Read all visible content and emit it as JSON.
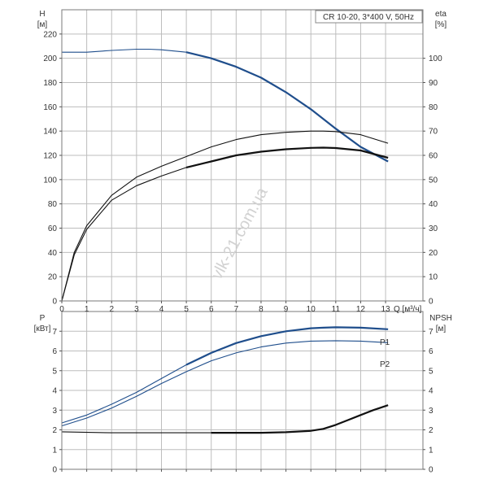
{
  "header_box": "CR 10-20, 3*400 V, 50Hz",
  "watermark": "vlk-21.com.ua",
  "colors": {
    "blue": "#1f4e8c",
    "black": "#111111",
    "grid": "#bdbdbd",
    "frame": "#7a7a7a"
  },
  "chart_data": [
    {
      "type": "line",
      "panel": "top",
      "x_axis": {
        "label": "Q [м³/ч]",
        "ticks": [
          0,
          1,
          2,
          3,
          4,
          5,
          6,
          7,
          8,
          9,
          10,
          11,
          12,
          13
        ],
        "range": [
          0,
          14.5
        ]
      },
      "y_left": {
        "label": "H",
        "unit": "[м]",
        "ticks": [
          0,
          20,
          40,
          60,
          80,
          100,
          120,
          140,
          160,
          180,
          200,
          220
        ],
        "range": [
          0,
          240
        ]
      },
      "y_right": {
        "label": "eta",
        "unit": "[%]",
        "ticks": [
          0,
          10,
          20,
          30,
          40,
          50,
          60,
          70,
          80,
          90,
          100
        ],
        "range": [
          0,
          120
        ]
      },
      "grid": true,
      "series": [
        {
          "color_key": "blue",
          "axis": "left",
          "thick_from_x": 5,
          "x": [
            0,
            0.5,
            1,
            2,
            3,
            3.5,
            4,
            5,
            6,
            7,
            8,
            9,
            10,
            11,
            12,
            13.1
          ],
          "y": [
            205,
            205,
            205,
            206.5,
            207.5,
            207.5,
            207,
            205,
            200,
            193,
            184,
            172,
            158,
            142,
            127,
            115
          ]
        },
        {
          "color_key": "black",
          "axis": "right",
          "thick_from_x": null,
          "x": [
            0,
            0.5,
            1,
            2,
            3,
            4,
            5,
            6,
            7,
            8,
            9,
            10,
            10.5,
            11,
            12,
            13.1
          ],
          "y": [
            0,
            20,
            31,
            43.5,
            51,
            55.5,
            59.5,
            63.5,
            66.5,
            68.5,
            69.5,
            70,
            70,
            69.8,
            68.5,
            65
          ]
        },
        {
          "color_key": "black",
          "axis": "right",
          "thick_from_x": 5,
          "x": [
            0,
            0.5,
            1,
            2,
            3,
            4,
            5,
            6,
            7,
            8,
            9,
            10,
            10.5,
            11,
            12,
            13.1
          ],
          "y": [
            0,
            19,
            29.5,
            41.5,
            47.5,
            51.5,
            55,
            57.5,
            60,
            61.5,
            62.5,
            63.1,
            63.2,
            63,
            62,
            59
          ]
        }
      ]
    },
    {
      "type": "line",
      "panel": "bottom",
      "x_axis": {
        "label": "",
        "ticks": [
          0,
          1,
          2,
          3,
          4,
          5,
          6,
          7,
          8,
          9,
          10,
          11,
          12,
          13
        ],
        "range": [
          0,
          14.5
        ]
      },
      "y_left": {
        "label": "P",
        "unit": "[кВт]",
        "ticks": [
          0,
          1,
          2,
          3,
          4,
          5,
          6,
          7
        ],
        "range": [
          0,
          8
        ]
      },
      "y_right": {
        "label": "NPSH",
        "unit": "[м]",
        "ticks": [
          0,
          1,
          2,
          3,
          4,
          5,
          6,
          7
        ],
        "range": [
          0,
          8
        ]
      },
      "grid": true,
      "series": [
        {
          "name": "P1",
          "color_key": "blue",
          "axis": "left",
          "thick_from_x": 5,
          "x": [
            0,
            1,
            2,
            3,
            4,
            5,
            6,
            7,
            8,
            9,
            10,
            10.5,
            11,
            12,
            13.1
          ],
          "y": [
            2.35,
            2.75,
            3.3,
            3.9,
            4.6,
            5.3,
            5.9,
            6.4,
            6.75,
            7.0,
            7.15,
            7.18,
            7.2,
            7.18,
            7.1
          ]
        },
        {
          "name": "P2",
          "color_key": "blue",
          "axis": "left",
          "thick_from_x": null,
          "x": [
            0,
            1,
            2,
            3,
            4,
            5,
            6,
            7,
            8,
            9,
            10,
            11,
            12,
            13.1
          ],
          "y": [
            2.2,
            2.6,
            3.1,
            3.7,
            4.35,
            4.95,
            5.5,
            5.9,
            6.2,
            6.4,
            6.5,
            6.52,
            6.5,
            6.42
          ]
        },
        {
          "name": "",
          "color_key": "black",
          "axis": "right",
          "thick_from_x": 5,
          "x": [
            0,
            2,
            4,
            6,
            8,
            9,
            10,
            10.5,
            11,
            11.5,
            12,
            12.5,
            13.1
          ],
          "y": [
            1.9,
            1.85,
            1.85,
            1.85,
            1.85,
            1.88,
            1.95,
            2.05,
            2.25,
            2.5,
            2.75,
            3.0,
            3.25
          ]
        }
      ]
    }
  ]
}
